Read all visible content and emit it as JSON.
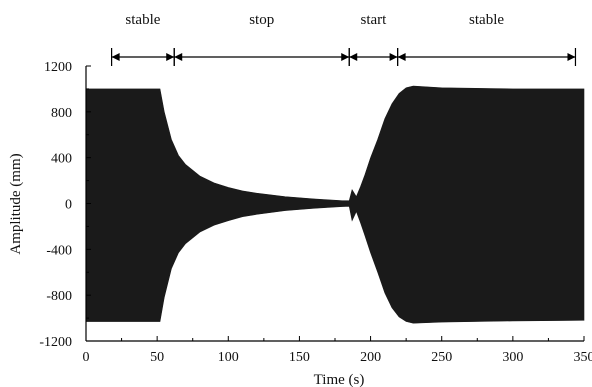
{
  "chart_data": {
    "type": "line",
    "title": "",
    "xlabel": "Time (s)",
    "ylabel": "Amplitude (mm)",
    "xlim": [
      0,
      350
    ],
    "ylim": [
      -1200,
      1200
    ],
    "xticks": [
      0,
      50,
      100,
      150,
      200,
      250,
      300,
      350
    ],
    "yticks": [
      1200,
      800,
      400,
      0,
      -400,
      -800,
      -1200
    ],
    "grid": false,
    "legend": "none",
    "colors": {
      "signal": "#1a1a1a",
      "axis": "#000000"
    },
    "series": [
      {
        "envelope_time": [
          0,
          52,
          55,
          60,
          65,
          70,
          80,
          90,
          100,
          110,
          120,
          130,
          140,
          150,
          160,
          170,
          180,
          185,
          187,
          190,
          193,
          196,
          200,
          205,
          210,
          215,
          220,
          225,
          230,
          250,
          300,
          350
        ],
        "envelope_upper": [
          1000,
          1000,
          800,
          560,
          420,
          340,
          240,
          180,
          140,
          110,
          90,
          75,
          60,
          50,
          40,
          32,
          25,
          25,
          120,
          60,
          150,
          250,
          400,
          560,
          740,
          870,
          960,
          1010,
          1025,
          1010,
          1000,
          1000
        ],
        "envelope_lower": [
          -1030,
          -1030,
          -820,
          -570,
          -430,
          -350,
          -250,
          -190,
          -150,
          -115,
          -95,
          -78,
          -62,
          -52,
          -42,
          -34,
          -27,
          -25,
          -150,
          -70,
          -170,
          -280,
          -430,
          -600,
          -780,
          -910,
          -990,
          -1030,
          -1045,
          -1035,
          -1025,
          -1020
        ]
      }
    ],
    "phases": [
      {
        "label": "stable",
        "start": 18,
        "end": 62
      },
      {
        "label": "stop",
        "start": 62,
        "end": 185
      },
      {
        "label": "start",
        "start": 185,
        "end": 219
      },
      {
        "label": "stable",
        "start": 219,
        "end": 344
      }
    ]
  }
}
